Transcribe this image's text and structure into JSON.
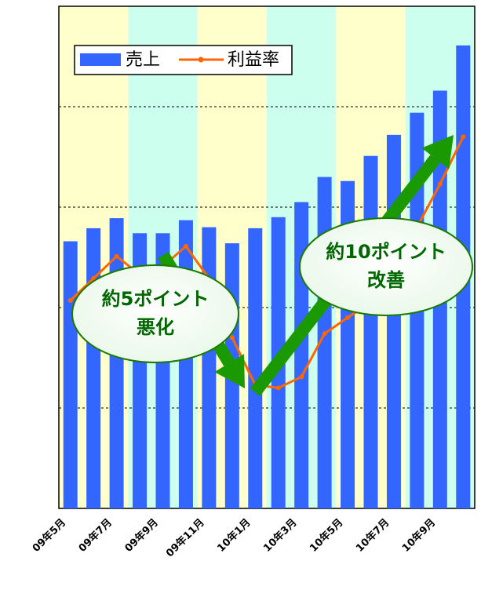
{
  "chart_data": {
    "type": "bar_line",
    "categories": [
      "09年5月",
      null,
      "09年7月",
      null,
      "09年9月",
      null,
      "09年11月",
      null,
      "10年1月",
      null,
      "10年3月",
      null,
      "10年5月",
      null,
      "10年7月",
      null,
      "10年9月",
      null
    ],
    "series": [
      {
        "name": "売上",
        "type": "bar",
        "color": "#3366ff",
        "values": [
          2.66,
          2.79,
          2.89,
          2.74,
          2.74,
          2.87,
          2.8,
          2.64,
          2.79,
          2.9,
          3.05,
          3.3,
          3.26,
          3.51,
          3.72,
          3.94,
          4.16,
          4.61
        ]
      },
      {
        "name": "利益率",
        "type": "line",
        "color": "#ff6600",
        "values": [
          2.07,
          2.29,
          2.51,
          2.33,
          2.41,
          2.61,
          2.29,
          1.7,
          1.23,
          1.2,
          1.31,
          1.74,
          1.9,
          2.05,
          2.41,
          2.8,
          3.23,
          3.7
        ]
      }
    ],
    "ylim": [
      0,
      5
    ],
    "yticks": [
      1,
      2,
      3,
      4
    ],
    "grid": true,
    "ytick_labels": false,
    "band_colors": [
      "#ffffcc",
      "#ccffee"
    ],
    "legend": "top-left",
    "annotations": [
      {
        "lines": [
          "約5ポイント",
          "悪化"
        ]
      },
      {
        "lines": [
          "約10ポイント",
          "改善"
        ]
      }
    ]
  }
}
